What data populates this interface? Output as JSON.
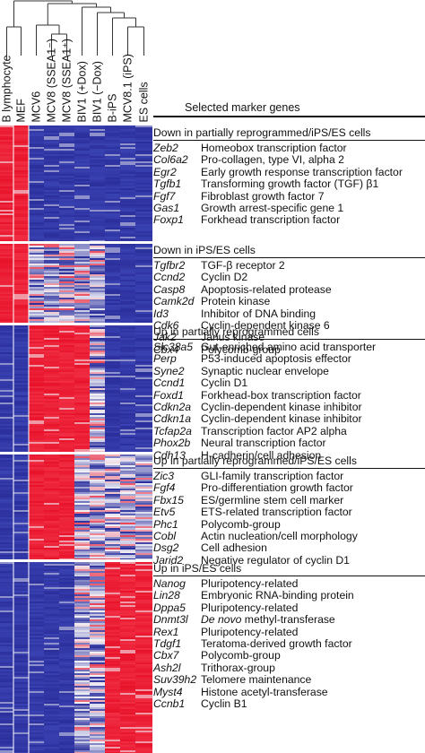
{
  "columns": [
    "B lymphocyte",
    "MEF",
    "MCV6",
    "MCV8 (SSEA1⁻)",
    "MCV8 (SSEA1⁺)",
    "BIV1 (+Dox)",
    "BIV1 (−Dox)",
    "B-iPS",
    "MCV8.1 (iPS)",
    "ES cells"
  ],
  "title": "Selected marker genes",
  "groups": [
    {
      "title": "Down in partially reprogrammed/iPS/ES cells",
      "profile": [
        "high",
        "high",
        "low",
        "low",
        "low",
        "low",
        "low",
        "low",
        "low",
        "low"
      ],
      "genes": [
        {
          "gene": "Zeb2",
          "desc": "Homeobox transcription factor"
        },
        {
          "gene": "Col6a2",
          "desc": "Pro-collagen, type VI, alpha 2"
        },
        {
          "gene": "Egr2",
          "desc": "Early growth response transcription factor"
        },
        {
          "gene": "Tgfb1",
          "desc": "Transforming growth factor (TGF) β1"
        },
        {
          "gene": "Fgf7",
          "desc": "Fibroblast growth factor 7"
        },
        {
          "gene": "Gas1",
          "desc": "Growth arrest-specific gene 1"
        },
        {
          "gene": "Foxp1",
          "desc": "Forkhead transcription factor"
        }
      ]
    },
    {
      "title": "Down in iPS/ES cells",
      "profile": [
        "high",
        "high",
        "mixed",
        "mixed",
        "mixed",
        "mixed",
        "mixed",
        "low",
        "low",
        "low"
      ],
      "genes": [
        {
          "gene": "Tgfbr2",
          "desc": "TGF-β receptor 2"
        },
        {
          "gene": "Ccnd2",
          "desc": "Cyclin D2"
        },
        {
          "gene": "Casp8",
          "desc": "Apoptosis-related protease"
        },
        {
          "gene": "Camk2d",
          "desc": "Protein kinase"
        },
        {
          "gene": "Id3",
          "desc": "Inhibitor of DNA binding"
        },
        {
          "gene": "Cdk6",
          "desc": "Cyclin-dependent kinase 6"
        },
        {
          "gene": "Jak2",
          "desc": "Janus kinase"
        },
        {
          "gene": "Cbx4",
          "desc": "Polycomb-group"
        }
      ]
    },
    {
      "title": "Up in partially reprogrammed cells",
      "profile": [
        "low",
        "low",
        "high",
        "high",
        "high",
        "high",
        "mixed",
        "low",
        "low",
        "low"
      ],
      "genes": [
        {
          "gene": "Slc38a5",
          "desc": "Gut-enriched amino acid transporter"
        },
        {
          "gene": "Perp",
          "desc": "P53-induced apoptosis effector"
        },
        {
          "gene": "Syne2",
          "desc": "Synaptic nuclear envelope"
        },
        {
          "gene": "Ccnd1",
          "desc": "Cyclin D1"
        },
        {
          "gene": "Foxd1",
          "desc": "Forkhead-box transcription factor"
        },
        {
          "gene": "Cdkn2a",
          "desc": "Cyclin-dependent kinase inhibitor"
        },
        {
          "gene": "Cdkn1a",
          "desc": "Cyclin-dependent kinase inhibitor"
        },
        {
          "gene": "Tcfap2a",
          "desc": "Transcription factor AP2 alpha"
        },
        {
          "gene": "Phox2b",
          "desc": "Neural transcription factor"
        },
        {
          "gene": "Cdh13",
          "desc": "H-cadherin/cell adhesion"
        }
      ]
    },
    {
      "title": "Up in partially reprogrammed/iPS/ES cells",
      "profile": [
        "low",
        "low",
        "high",
        "high",
        "high",
        "mixed",
        "mixed",
        "mixed",
        "mixed",
        "mixed"
      ],
      "genes": [
        {
          "gene": "Zic3",
          "desc": "GLI-family transcription factor"
        },
        {
          "gene": "Fgf4",
          "desc": "Pro-differentiation growth factor"
        },
        {
          "gene": "Fbx15",
          "desc": "ES/germline stem cell marker"
        },
        {
          "gene": "Etv5",
          "desc": "ETS-related transcription factor"
        },
        {
          "gene": "Phc1",
          "desc": "Polycomb-group"
        },
        {
          "gene": "Cobl",
          "desc": "Actin nucleation/cell morphology"
        },
        {
          "gene": "Dsg2",
          "desc": "Cell adhesion"
        },
        {
          "gene": "Jarid2",
          "desc": "Negative regulator of cyclin D1"
        }
      ]
    },
    {
      "title": "Up in iPS/ES cells",
      "profile": [
        "low",
        "low",
        "low",
        "low",
        "low",
        "mixed",
        "mixed",
        "high",
        "high",
        "high"
      ],
      "genes": [
        {
          "gene": "Nanog",
          "desc": "Pluripotency-related"
        },
        {
          "gene": "Lin28",
          "desc": "Embryonic RNA-binding protein"
        },
        {
          "gene": "Dppa5",
          "desc": "Pluripotency-related"
        },
        {
          "gene": "Dnmt3l",
          "desc_parts": [
            {
              "text": "De novo",
              "italic": true
            },
            {
              "text": " methyl-transferase",
              "italic": false
            }
          ]
        },
        {
          "gene": "Rex1",
          "desc": "Pluripotency-related"
        },
        {
          "gene": "Tdgf1",
          "desc": "Teratoma-derived growth factor"
        },
        {
          "gene": "Cbx7",
          "desc": "Polycomb-group"
        },
        {
          "gene": "Ash2l",
          "desc": "Trithorax-group"
        },
        {
          "gene": "Suv39h2",
          "desc": "Telomere maintenance"
        },
        {
          "gene": "Myst4",
          "desc": "Histone acetyl-transferase"
        },
        {
          "gene": "Ccnb1",
          "desc": "Cyclin B1"
        }
      ]
    }
  ],
  "colors": {
    "high": "#e8132b",
    "low": "#2b2f9c",
    "mid": "#f2f2f7"
  }
}
